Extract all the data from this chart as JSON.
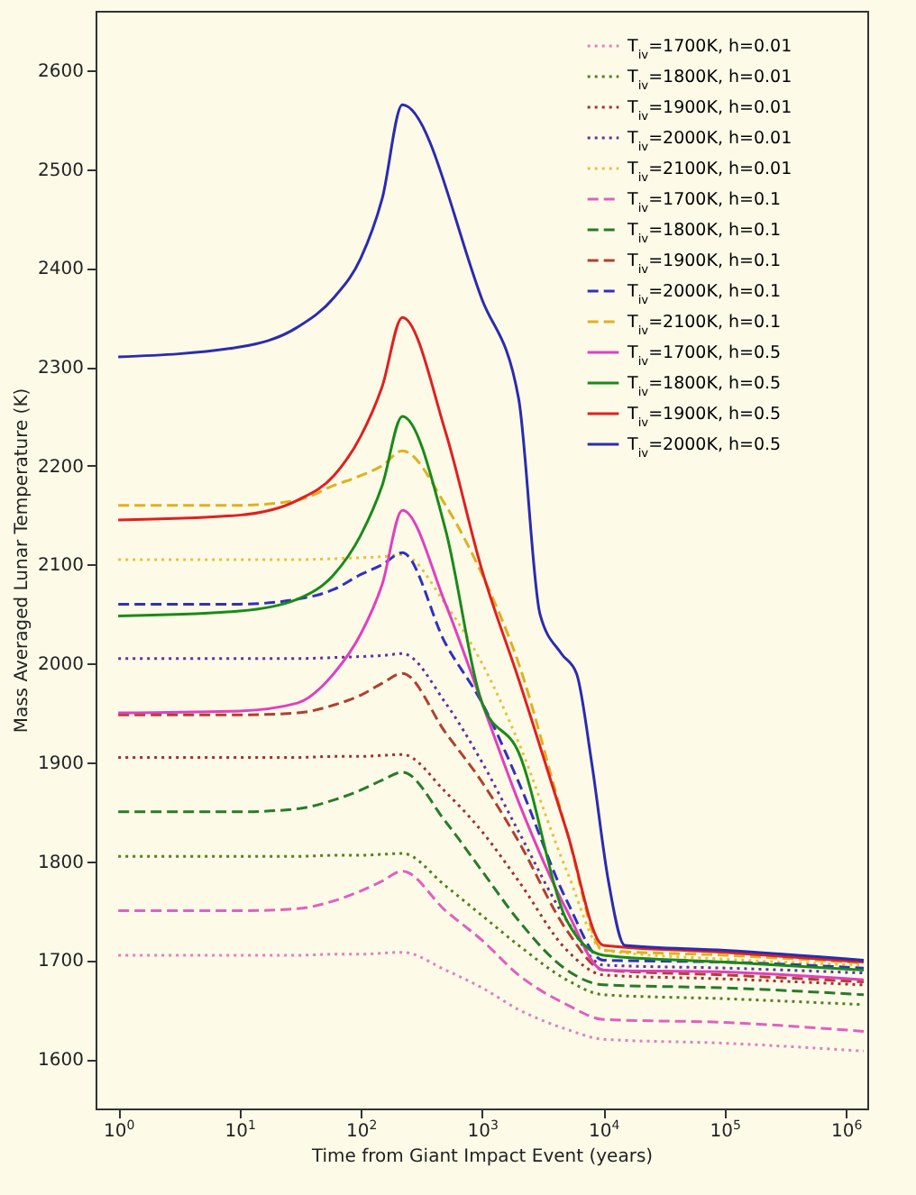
{
  "chart_data": {
    "type": "line",
    "xlabel": "Time from Giant Impact Event (years)",
    "ylabel": "Mass Averaged Lunar Temperature (K)",
    "log": "x",
    "xlim": [
      0.65,
      1500000
    ],
    "xticks": [
      {
        "value": 1,
        "label": "10$^{0}$"
      },
      {
        "value": 10,
        "label": "10$^{1}$"
      },
      {
        "value": 100,
        "label": "10$^{2}$"
      },
      {
        "value": 1000,
        "label": "10$^{3}$"
      },
      {
        "value": 10000,
        "label": "10$^{4}$"
      },
      {
        "value": 100000,
        "label": "10$^{5}$"
      },
      {
        "value": 1000000,
        "label": "10$^{6}$"
      }
    ],
    "ylim": [
      1550,
      2660
    ],
    "yticks": [
      1600,
      1700,
      1800,
      1900,
      2000,
      2100,
      2200,
      2300,
      2400,
      2500,
      2600
    ],
    "grid": false,
    "legend": "top right",
    "x": [
      1,
      10,
      30,
      60,
      100,
      150,
      220,
      500,
      1000,
      2000,
      5000,
      10000,
      100000,
      1400000
    ],
    "series": [
      {
        "name": "T$_{iv}$=1700K, h=0.01",
        "color": "#e080c0",
        "line_style": "dotted",
        "values": [
          1705,
          1705,
          1705,
          1706,
          1706,
          1707,
          1708,
          1690,
          1672,
          1650,
          1630,
          1620,
          1616,
          1608
        ]
      },
      {
        "name": "T$_{iv}$=1800K, h=0.01",
        "color": "#508020",
        "line_style": "dotted",
        "values": [
          1805,
          1805,
          1805,
          1806,
          1806,
          1807,
          1808,
          1775,
          1745,
          1715,
          1680,
          1665,
          1661,
          1655
        ]
      },
      {
        "name": "T$_{iv}$=1900K, h=0.01",
        "color": "#a03030",
        "line_style": "dotted",
        "values": [
          1905,
          1905,
          1905,
          1906,
          1906,
          1907,
          1908,
          1870,
          1830,
          1780,
          1710,
          1685,
          1681,
          1675
        ]
      },
      {
        "name": "T$_{iv}$=2000K, h=0.01",
        "color": "#6030a0",
        "line_style": "dotted",
        "values": [
          2005,
          2005,
          2005,
          2006,
          2007,
          2008,
          2010,
          1960,
          1900,
          1830,
          1740,
          1695,
          1692,
          1687
        ]
      },
      {
        "name": "T$_{iv}$=2100K, h=0.01",
        "color": "#e8c040",
        "line_style": "dotted",
        "values": [
          2105,
          2105,
          2105,
          2106,
          2107,
          2108,
          2110,
          2060,
          2000,
          1920,
          1790,
          1710,
          1701,
          1695
        ]
      },
      {
        "name": "T$_{iv}$=1700K, h=0.1",
        "color": "#e060c0",
        "line_style": "dashed",
        "values": [
          1750,
          1750,
          1752,
          1760,
          1770,
          1780,
          1790,
          1750,
          1720,
          1685,
          1655,
          1640,
          1637,
          1628
        ]
      },
      {
        "name": "T$_{iv}$=1800K, h=0.1",
        "color": "#2a7a2a",
        "line_style": "dashed",
        "values": [
          1850,
          1850,
          1853,
          1862,
          1872,
          1882,
          1890,
          1840,
          1790,
          1740,
          1690,
          1675,
          1672,
          1665
        ]
      },
      {
        "name": "T$_{iv}$=1900K, h=0.1",
        "color": "#b04030",
        "line_style": "dashed",
        "values": [
          1948,
          1948,
          1950,
          1958,
          1968,
          1980,
          1990,
          1930,
          1880,
          1820,
          1730,
          1690,
          1685,
          1678
        ]
      },
      {
        "name": "T$_{iv}$=2000K, h=0.1",
        "color": "#3030c0",
        "line_style": "dashed",
        "values": [
          2060,
          2060,
          2065,
          2075,
          2090,
          2100,
          2112,
          2020,
          1960,
          1880,
          1760,
          1700,
          1698,
          1692
        ]
      },
      {
        "name": "T$_{iv}$=2100K, h=0.1",
        "color": "#e0b020",
        "line_style": "dashed",
        "values": [
          2160,
          2160,
          2165,
          2180,
          2190,
          2200,
          2215,
          2160,
          2090,
          2000,
          1830,
          1710,
          1705,
          1697
        ]
      },
      {
        "name": "T$_{iv}$=1700K, h=0.5",
        "color": "#e040c0",
        "line_style": "solid",
        "values": [
          1950,
          1952,
          1960,
          1990,
          2030,
          2080,
          2155,
          2060,
          1960,
          1860,
          1750,
          1690,
          1688,
          1680
        ]
      },
      {
        "name": "T$_{iv}$=1800K, h=0.5",
        "color": "#1a8a1a",
        "line_style": "solid",
        "values": [
          2048,
          2053,
          2065,
          2090,
          2130,
          2180,
          2250,
          2135,
          1960,
          1910,
          1740,
          1705,
          1698,
          1690
        ]
      },
      {
        "name": "T$_{iv}$=1900K, h=0.5",
        "color": "#e02020",
        "line_style": "solid",
        "values": [
          2145,
          2150,
          2165,
          2190,
          2230,
          2280,
          2350,
          2234,
          2094,
          1984,
          1830,
          1715,
          1708,
          1698
        ]
      },
      {
        "name": "T$_{iv}$=2000K, h=0.5",
        "color": "#2b2bb0",
        "line_style": "solid",
        "x": [
          1,
          10,
          30,
          60,
          100,
          150,
          220,
          1000,
          2000,
          3000,
          4500,
          6000,
          8000,
          11000,
          15000,
          100000,
          1400000
        ],
        "values": [
          2310,
          2320,
          2340,
          2370,
          2410,
          2470,
          2565,
          2368,
          2268,
          2050,
          2010,
          1990,
          1900,
          1780,
          1715,
          1710,
          1700
        ]
      }
    ]
  }
}
